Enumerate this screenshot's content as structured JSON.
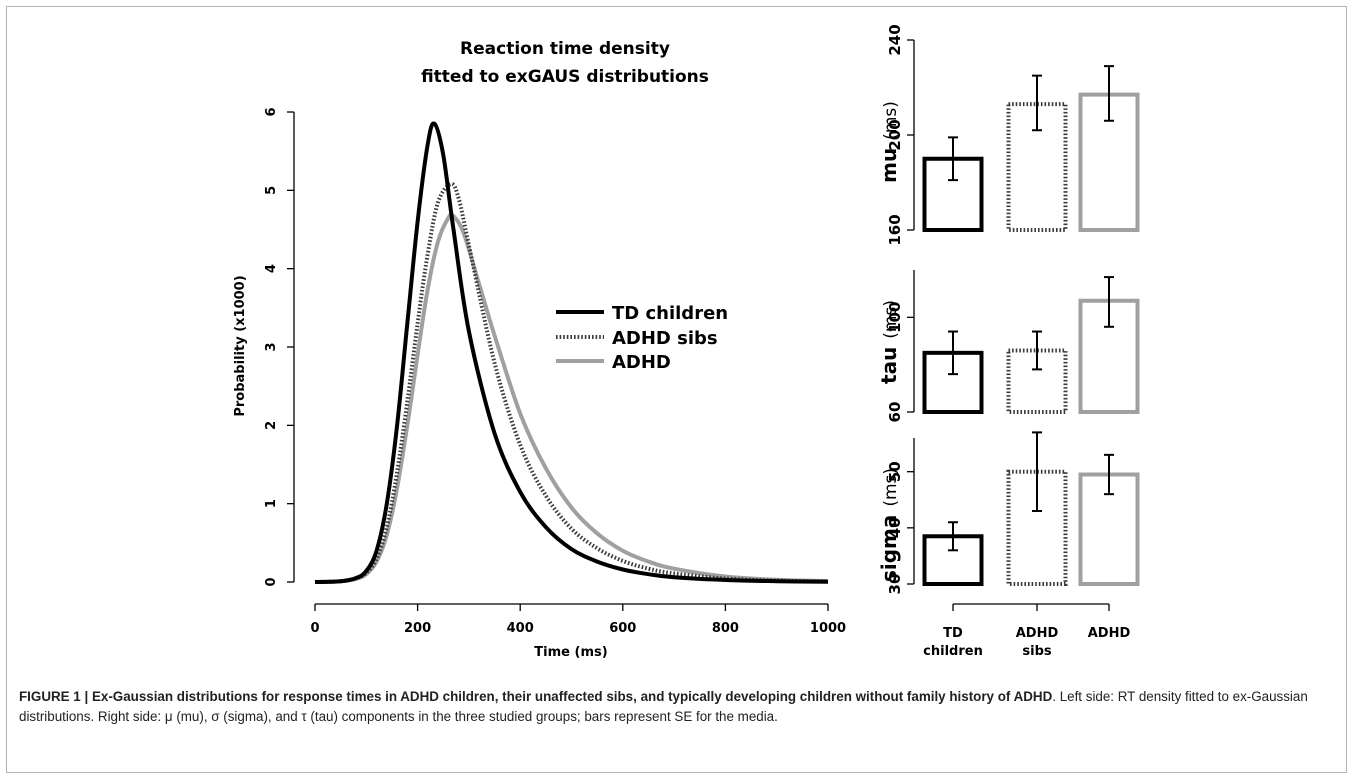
{
  "colors": {
    "td": "#000000",
    "sibs": "#3a3a3a",
    "adhd": "#a0a0a0",
    "text": "#000000",
    "frame": "#b3b3b3"
  },
  "caption": {
    "head": "FIGURE 1 | Ex-Gaussian distributions for response times in ADHD children, their unaffected sibs, and typically developing children without family history of ADHD",
    "body": ". Left side: RT density fitted to ex-Gaussian distributions. Right side: μ (mu), σ (sigma), and τ (tau) components in the three studied groups; bars represent SE for the media."
  },
  "chart_data": [
    {
      "type": "line",
      "title": "Reaction time density fitted to exGAUS distributions",
      "title_lines": [
        "Reaction time density",
        "fitted to exGAUS distributions"
      ],
      "xlabel": "Time (ms)",
      "ylabel": "Probability (x1000)",
      "xlim": [
        0,
        1000
      ],
      "ylim": [
        0,
        6
      ],
      "xticks": [
        0,
        200,
        400,
        600,
        800,
        1000
      ],
      "yticks": [
        0,
        1,
        2,
        3,
        4,
        5,
        6
      ],
      "grid": false,
      "legend_position": "center-right",
      "series": [
        {
          "name": "TD children",
          "style": "solid",
          "color": "#000000",
          "x": [
            0,
            50,
            80,
            100,
            120,
            140,
            160,
            180,
            200,
            220,
            233,
            250,
            270,
            300,
            350,
            400,
            450,
            500,
            550,
            600,
            650,
            700,
            800,
            900,
            1000
          ],
          "y": [
            0,
            0.01,
            0.05,
            0.14,
            0.4,
            1.0,
            2.0,
            3.3,
            4.6,
            5.6,
            5.85,
            5.45,
            4.5,
            3.2,
            1.9,
            1.15,
            0.7,
            0.42,
            0.26,
            0.16,
            0.1,
            0.06,
            0.025,
            0.01,
            0.004
          ]
        },
        {
          "name": "ADHD sibs",
          "style": "dotted",
          "color": "#3a3a3a",
          "x": [
            0,
            50,
            80,
            100,
            120,
            140,
            160,
            180,
            200,
            220,
            240,
            265,
            280,
            300,
            350,
            400,
            450,
            500,
            550,
            600,
            650,
            700,
            800,
            900,
            1000
          ],
          "y": [
            0,
            0.01,
            0.05,
            0.12,
            0.3,
            0.7,
            1.4,
            2.3,
            3.3,
            4.2,
            4.85,
            5.08,
            4.9,
            4.3,
            2.8,
            1.75,
            1.1,
            0.68,
            0.43,
            0.27,
            0.17,
            0.11,
            0.045,
            0.018,
            0.007
          ]
        },
        {
          "name": "ADHD",
          "style": "solid",
          "color": "#a0a0a0",
          "x": [
            0,
            50,
            80,
            100,
            120,
            140,
            160,
            180,
            200,
            220,
            240,
            260,
            270,
            290,
            320,
            350,
            400,
            450,
            500,
            550,
            600,
            650,
            700,
            800,
            900,
            1000
          ],
          "y": [
            0,
            0.01,
            0.04,
            0.1,
            0.26,
            0.6,
            1.2,
            2.0,
            2.9,
            3.75,
            4.35,
            4.65,
            4.67,
            4.45,
            3.8,
            3.15,
            2.15,
            1.45,
            0.95,
            0.62,
            0.4,
            0.26,
            0.17,
            0.07,
            0.028,
            0.011
          ]
        }
      ]
    },
    {
      "type": "bar",
      "ylabel": "mu",
      "ylabel_unit": "(ms)",
      "categories": [
        "TD children",
        "ADHD sibs",
        "ADHD"
      ],
      "values": [
        190,
        213,
        217
      ],
      "error": [
        [
          181,
          199
        ],
        [
          202,
          225
        ],
        [
          206,
          229
        ]
      ],
      "ylim": [
        160,
        240
      ],
      "yticks": [
        160,
        200,
        240
      ],
      "styles": [
        "solid-black",
        "dotted",
        "solid-gray"
      ]
    },
    {
      "type": "bar",
      "ylabel": "tau",
      "ylabel_unit": "(ms)",
      "categories": [
        "TD children",
        "ADHD sibs",
        "ADHD"
      ],
      "values": [
        85,
        86,
        107
      ],
      "error": [
        [
          76,
          94
        ],
        [
          78,
          94
        ],
        [
          96,
          117
        ]
      ],
      "ylim": [
        60,
        120
      ],
      "yticks": [
        60,
        100
      ],
      "styles": [
        "solid-black",
        "dotted",
        "solid-gray"
      ]
    },
    {
      "type": "bar",
      "ylabel": "sigma",
      "ylabel_unit": "(ms)",
      "categories": [
        "TD children",
        "ADHD sibs",
        "ADHD"
      ],
      "values": [
        38.5,
        50,
        49.5
      ],
      "error": [
        [
          36,
          41
        ],
        [
          43,
          57
        ],
        [
          46,
          53
        ]
      ],
      "ylim": [
        30,
        56
      ],
      "yticks": [
        30,
        40,
        50
      ],
      "styles": [
        "solid-black",
        "dotted",
        "solid-gray"
      ],
      "category_labels": [
        [
          "TD",
          "children"
        ],
        [
          "ADHD",
          "sibs"
        ],
        [
          "ADHD"
        ]
      ]
    }
  ]
}
